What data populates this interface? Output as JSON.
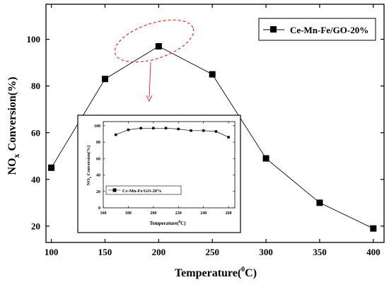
{
  "chart_data": [
    {
      "type": "line",
      "x": [
        100,
        150,
        200,
        250,
        300,
        350,
        400
      ],
      "series": [
        {
          "name": "Ce-Mn-Fe/GO-20%",
          "values": [
            45,
            83,
            97,
            85,
            49,
            30,
            19
          ],
          "marker": "square"
        }
      ],
      "xlabel": "Temperature(⁰C)",
      "ylabel": "NOx Conversion(%)",
      "ylabel_main": "NO",
      "ylabel_sub": "x",
      "ylabel_rest": " Conversion(%)",
      "xlabel_main": "Temperature(",
      "xlabel_sup": "0",
      "xlabel_rest": "C)",
      "xlim": [
        95,
        410
      ],
      "ylim": [
        13,
        115
      ],
      "xticks": [
        "100",
        "150",
        "200",
        "250",
        "300",
        "350",
        "400"
      ],
      "yticks": [
        "20",
        "40",
        "60",
        "80",
        "100"
      ],
      "legend_position": "top-right",
      "grid": false
    },
    {
      "type": "line",
      "x": [
        170,
        180,
        190,
        200,
        210,
        220,
        230,
        240,
        250,
        260
      ],
      "series": [
        {
          "name": "Ce-Mn-Fe/GO-20%",
          "values": [
            89,
            95,
            97,
            97,
            97,
            96,
            94,
            94,
            93,
            86
          ],
          "marker": "square"
        }
      ],
      "xlabel": "Temperature(⁰C)",
      "ylabel": "NOx Conversion(%)",
      "ylabel_main": "NO",
      "ylabel_sub": "x",
      "ylabel_rest": " Conversion(%)",
      "xlabel_main": "Temperature(",
      "xlabel_sup": "0",
      "xlabel_rest": "C)",
      "xlim": [
        160,
        265
      ],
      "ylim": [
        0,
        105
      ],
      "xticks": [
        "160",
        "180",
        "200",
        "220",
        "240",
        "260"
      ],
      "yticks": [
        "0",
        "20",
        "40",
        "60",
        "80",
        "100"
      ],
      "legend_position": "center-left",
      "grid": false
    }
  ],
  "colors": {
    "line": "#000000",
    "annotation": "#e8302a"
  }
}
